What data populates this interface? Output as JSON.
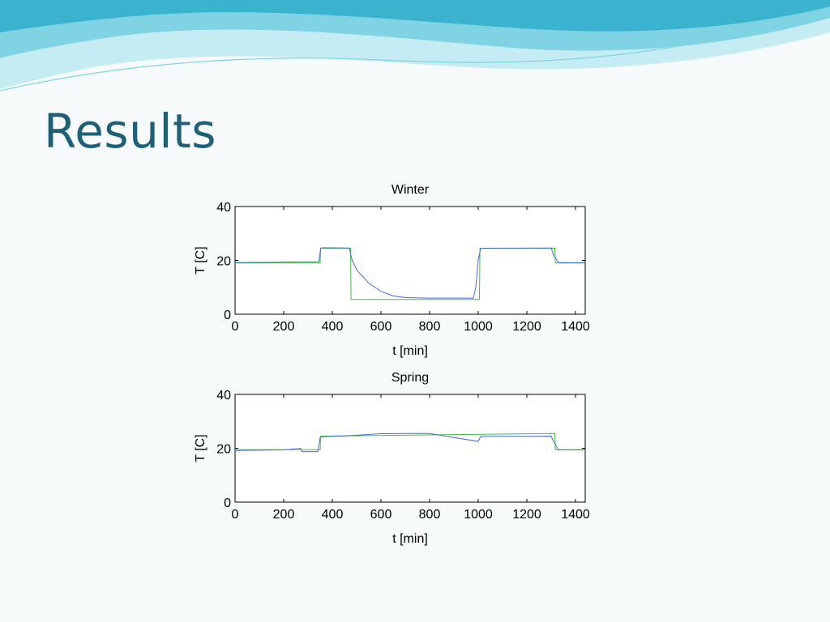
{
  "slide": {
    "title": "Results"
  },
  "colors": {
    "title": "#1f5f77",
    "wave_light": "#c5ecf2",
    "wave_mid": "#7fd3e3",
    "wave_dark": "#3bb3cf",
    "series_measured": "#4a69d6",
    "series_setpoint": "#3fbf3f"
  },
  "chart_data": [
    {
      "type": "line",
      "title": "Winter",
      "xlabel": "t [min]",
      "ylabel": "T [C]",
      "xlim": [
        0,
        1440
      ],
      "ylim": [
        0,
        40
      ],
      "xticks": [
        0,
        200,
        400,
        600,
        800,
        1000,
        1200,
        1400
      ],
      "yticks": [
        0,
        20,
        40
      ],
      "grid": false,
      "series": [
        {
          "color": "#3fbf3f",
          "x": [
            0,
            350,
            352,
            475,
            477,
            1005,
            1007,
            1315,
            1317,
            1440
          ],
          "y": [
            19,
            19,
            24.5,
            24.5,
            5.5,
            5.5,
            24.5,
            24.5,
            19,
            19
          ]
        },
        {
          "color": "#4a69d6",
          "x": [
            0,
            345,
            352,
            360,
            470,
            480,
            500,
            550,
            600,
            650,
            700,
            800,
            900,
            980,
            990,
            1000,
            1010,
            1300,
            1310,
            1330,
            1440
          ],
          "y": [
            19.2,
            19.5,
            24.5,
            24.7,
            24.6,
            20.5,
            16.5,
            11.5,
            8.5,
            6.8,
            6.2,
            6.0,
            6.0,
            6.0,
            10,
            20,
            24.5,
            24.6,
            22,
            19.2,
            19.2
          ]
        }
      ]
    },
    {
      "type": "line",
      "title": "Spring",
      "xlabel": "t [min]",
      "ylabel": "T [C]",
      "xlim": [
        0,
        1440
      ],
      "ylim": [
        0,
        40
      ],
      "xticks": [
        0,
        200,
        400,
        600,
        800,
        1000,
        1200,
        1400
      ],
      "yticks": [
        0,
        20,
        40
      ],
      "grid": false,
      "series": [
        {
          "color": "#3fbf3f",
          "x": [
            0,
            350,
            352,
            1315,
            1317,
            1440
          ],
          "y": [
            19.5,
            19.5,
            24.5,
            25.5,
            19.5,
            19.5
          ]
        },
        {
          "color": "#4a69d6",
          "x": [
            0,
            200,
            270,
            275,
            340,
            350,
            360,
            450,
            600,
            800,
            900,
            1000,
            1010,
            1300,
            1310,
            1330,
            1440
          ],
          "y": [
            19.2,
            19.4,
            20.0,
            18.7,
            18.8,
            24.0,
            24.3,
            24.6,
            25.4,
            25.5,
            24.0,
            22.6,
            24.4,
            24.5,
            22.5,
            19.4,
            19.4
          ]
        }
      ]
    }
  ]
}
